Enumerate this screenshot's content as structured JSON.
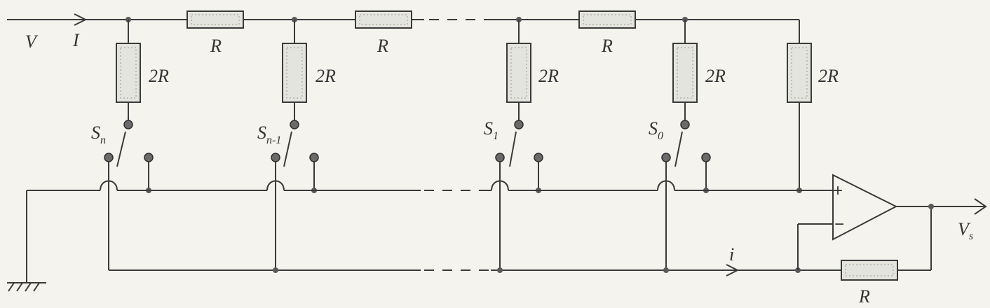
{
  "labels": {
    "input_voltage": "V",
    "input_current": "I",
    "series_resistor": "R",
    "shunt_resistor": "2R",
    "output_current": "i",
    "output_voltage": "V",
    "output_voltage_sub": "s",
    "feedback_resistor": "R",
    "opamp_plus": "+",
    "opamp_minus": "−"
  },
  "switches": [
    {
      "letter": "S",
      "sub": "n"
    },
    {
      "letter": "S",
      "sub": "n-1"
    },
    {
      "letter": "S",
      "sub": "1"
    },
    {
      "letter": "S",
      "sub": "0"
    }
  ]
}
